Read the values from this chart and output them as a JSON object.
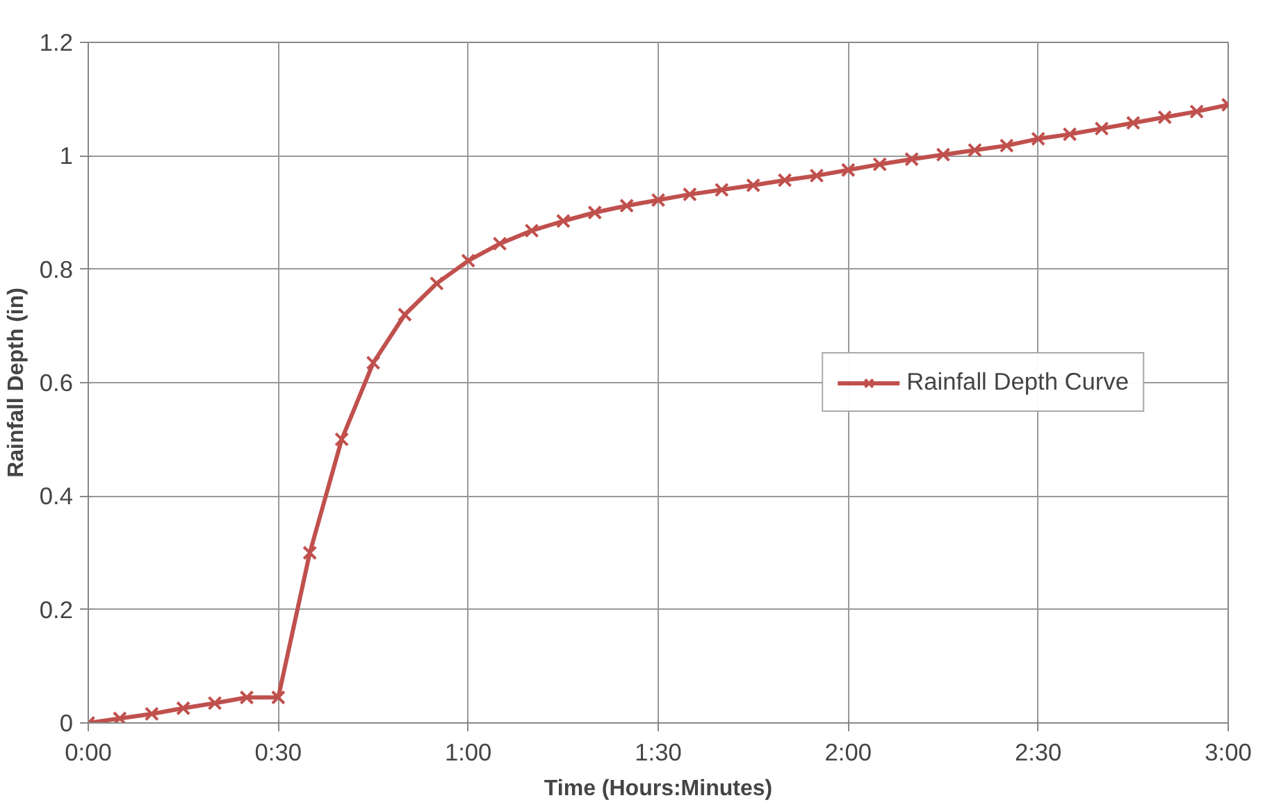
{
  "chart_data": {
    "type": "line",
    "xlabel": "Time (Hours:Minutes)",
    "ylabel": "Rainfall Depth (in)",
    "x": [
      0,
      0.083,
      0.167,
      0.25,
      0.333,
      0.417,
      0.5,
      0.583,
      0.667,
      0.75,
      0.833,
      0.917,
      1,
      1.083,
      1.167,
      1.25,
      1.333,
      1.417,
      1.5,
      1.583,
      1.667,
      1.75,
      1.833,
      1.917,
      2,
      2.083,
      2.167,
      2.25,
      2.333,
      2.417,
      2.5,
      2.583,
      2.667,
      2.75,
      2.833,
      2.917,
      3
    ],
    "series": [
      {
        "name": "Rainfall Depth Curve",
        "color": "#c0504d",
        "values": [
          0,
          0.008,
          0.016,
          0.026,
          0.035,
          0.045,
          0.045,
          0.3,
          0.5,
          0.635,
          0.72,
          0.775,
          0.815,
          0.845,
          0.868,
          0.885,
          0.9,
          0.912,
          0.922,
          0.932,
          0.94,
          0.948,
          0.957,
          0.965,
          0.975,
          0.985,
          0.994,
          1.002,
          1.01,
          1.018,
          1.03,
          1.038,
          1.048,
          1.058,
          1.068,
          1.078,
          1.09
        ]
      }
    ],
    "xlim": [
      0,
      3
    ],
    "ylim": [
      0,
      1.2
    ],
    "xticks": [
      {
        "value": 0,
        "label": "0:00"
      },
      {
        "value": 0.5,
        "label": "0:30"
      },
      {
        "value": 1,
        "label": "1:00"
      },
      {
        "value": 1.5,
        "label": "1:30"
      },
      {
        "value": 2,
        "label": "2:00"
      },
      {
        "value": 2.5,
        "label": "2:30"
      },
      {
        "value": 3,
        "label": "3:00"
      }
    ],
    "yticks": [
      0,
      0.2,
      0.4,
      0.6,
      0.8,
      1,
      1.2
    ],
    "grid": true,
    "legend": "right",
    "marker": "cross",
    "line_style": "solid"
  }
}
